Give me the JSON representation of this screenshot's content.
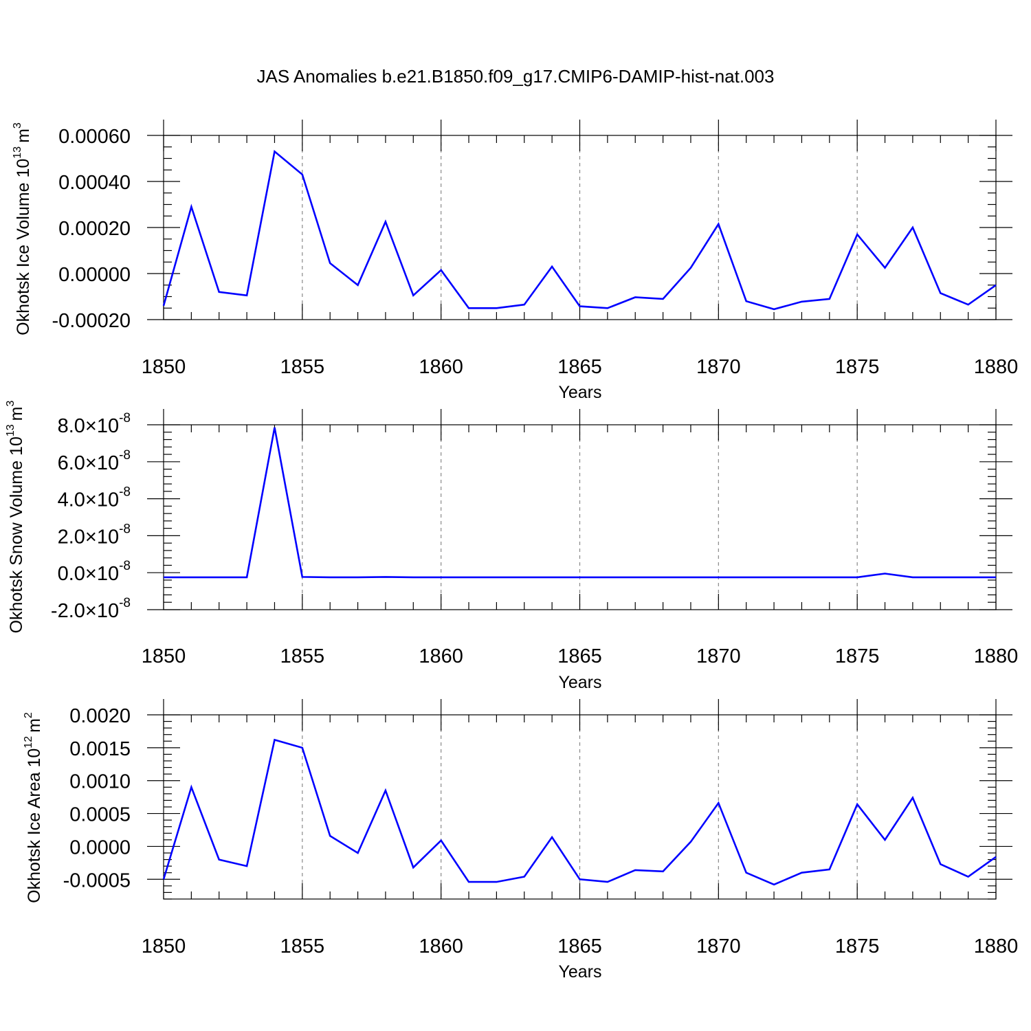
{
  "figure_title": "JAS Anomalies b.e21.B1850.f09_g17.CMIP6-DAMIP-hist-nat.003",
  "line_color": "#0000ff",
  "chart_data": [
    {
      "type": "line",
      "ylabel_main": "Okhotsk Ice Volume 10",
      "ylabel_exp": "13",
      "ylabel_unit": "m",
      "ylabel_unit_exp": "3",
      "xlabel": "Years",
      "xlim": [
        1850,
        1880
      ],
      "x_ticks": [
        1850,
        1855,
        1860,
        1865,
        1870,
        1875,
        1880
      ],
      "x_tick_labels": [
        "1850",
        "1855",
        "1860",
        "1865",
        "1870",
        "1875",
        "1880"
      ],
      "ylim": [
        -0.0002,
        0.0006
      ],
      "y_ticks": [
        -0.0002,
        0.0,
        0.0002,
        0.0004,
        0.0006
      ],
      "y_tick_labels": [
        "-0.00020",
        "0.00000",
        "0.00020",
        "0.00040",
        "0.00060"
      ],
      "y_tick_exp": "",
      "x": [
        1850,
        1851,
        1852,
        1853,
        1854,
        1855,
        1856,
        1857,
        1858,
        1859,
        1860,
        1861,
        1862,
        1863,
        1864,
        1865,
        1866,
        1867,
        1868,
        1869,
        1870,
        1871,
        1872,
        1873,
        1874,
        1875,
        1876,
        1877,
        1878,
        1879,
        1880
      ],
      "values": [
        -0.00014,
        0.00029,
        -8e-05,
        -9.5e-05,
        0.00053,
        0.00043,
        4.5e-05,
        -5e-05,
        0.000225,
        -9.5e-05,
        1.5e-05,
        -0.00015,
        -0.00015,
        -0.000135,
        3e-05,
        -0.000142,
        -0.00015,
        -0.000103,
        -0.00011,
        2.5e-05,
        0.000215,
        -0.00012,
        -0.000155,
        -0.000122,
        -0.00011,
        0.00017,
        2.5e-05,
        0.0002,
        -8.5e-05,
        -0.000135,
        -5e-05
      ]
    },
    {
      "type": "line",
      "ylabel_main": "Okhotsk Snow Volume 10",
      "ylabel_exp": "13",
      "ylabel_unit": "m",
      "ylabel_unit_exp": "3",
      "xlabel": "Years",
      "xlim": [
        1850,
        1880
      ],
      "x_ticks": [
        1850,
        1855,
        1860,
        1865,
        1870,
        1875,
        1880
      ],
      "x_tick_labels": [
        "1850",
        "1855",
        "1860",
        "1865",
        "1870",
        "1875",
        "1880"
      ],
      "ylim": [
        -2e-08,
        8e-08
      ],
      "y_ticks": [
        -2e-08,
        0.0,
        2e-08,
        4e-08,
        6e-08,
        8e-08
      ],
      "y_tick_labels": [
        "-2.0×10",
        "0.0×10",
        "2.0×10",
        "4.0×10",
        "6.0×10",
        "8.0×10"
      ],
      "y_tick_exp": "-8",
      "x": [
        1850,
        1851,
        1852,
        1853,
        1854,
        1855,
        1856,
        1857,
        1858,
        1859,
        1860,
        1861,
        1862,
        1863,
        1864,
        1865,
        1866,
        1867,
        1868,
        1869,
        1870,
        1871,
        1872,
        1873,
        1874,
        1875,
        1876,
        1877,
        1878,
        1879,
        1880
      ],
      "values": [
        -2.5e-09,
        -2.5e-09,
        -2.5e-09,
        -2.5e-09,
        7.85e-08,
        -2.3e-09,
        -2.5e-09,
        -2.5e-09,
        -2.3e-09,
        -2.5e-09,
        -2.5e-09,
        -2.5e-09,
        -2.5e-09,
        -2.5e-09,
        -2.5e-09,
        -2.5e-09,
        -2.5e-09,
        -2.5e-09,
        -2.5e-09,
        -2.5e-09,
        -2.5e-09,
        -2.5e-09,
        -2.5e-09,
        -2.5e-09,
        -2.5e-09,
        -2.5e-09,
        -5e-10,
        -2.5e-09,
        -2.5e-09,
        -2.5e-09,
        -2.5e-09
      ]
    },
    {
      "type": "line",
      "ylabel_main": "Okhotsk Ice Area 10",
      "ylabel_exp": "12",
      "ylabel_unit": "m",
      "ylabel_unit_exp": "2",
      "xlabel": "Years",
      "xlim": [
        1850,
        1880
      ],
      "x_ticks": [
        1850,
        1855,
        1860,
        1865,
        1870,
        1875,
        1880
      ],
      "x_tick_labels": [
        "1850",
        "1855",
        "1860",
        "1865",
        "1870",
        "1875",
        "1880"
      ],
      "ylim": [
        -0.0008,
        0.002
      ],
      "y_ticks": [
        -0.0005,
        0.0,
        0.0005,
        0.001,
        0.0015,
        0.002
      ],
      "y_tick_labels": [
        "-0.0005",
        "0.0000",
        "0.0005",
        "0.0010",
        "0.0015",
        "0.0020"
      ],
      "y_tick_exp": "",
      "x": [
        1850,
        1851,
        1852,
        1853,
        1854,
        1855,
        1856,
        1857,
        1858,
        1859,
        1860,
        1861,
        1862,
        1863,
        1864,
        1865,
        1866,
        1867,
        1868,
        1869,
        1870,
        1871,
        1872,
        1873,
        1874,
        1875,
        1876,
        1877,
        1878,
        1879,
        1880
      ],
      "values": [
        -0.0005,
        0.0009,
        -0.0002,
        -0.0003,
        0.00162,
        0.0015,
        0.00016,
        -0.0001,
        0.00085,
        -0.00032,
        9e-05,
        -0.00054,
        -0.00054,
        -0.00046,
        0.00014,
        -0.0005,
        -0.00054,
        -0.00036,
        -0.00038,
        7e-05,
        0.00066,
        -0.0004,
        -0.00058,
        -0.0004,
        -0.00035,
        0.00064,
        0.0001,
        0.00074,
        -0.00027,
        -0.00046,
        -0.00016
      ]
    }
  ]
}
